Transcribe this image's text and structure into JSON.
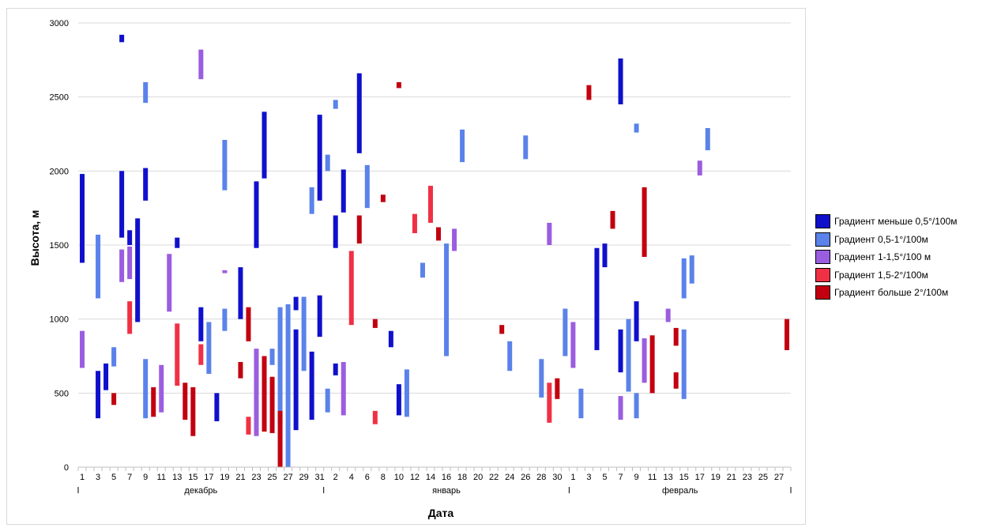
{
  "chart_data": {
    "type": "bar",
    "subtype": "floating-range-bars",
    "title": "",
    "xlabel": "Дата",
    "ylabel": "Высота, м",
    "ylim": [
      0,
      3000
    ],
    "yticks": [
      0,
      500,
      1000,
      1500,
      2000,
      2500,
      3000
    ],
    "grid": true,
    "legend_position": "right",
    "months": [
      {
        "label": "декабрь",
        "start": 0,
        "end": 30
      },
      {
        "label": "январь",
        "start": 31,
        "end": 61
      },
      {
        "label": "февраль",
        "start": 62,
        "end": 89
      }
    ],
    "x_tick_labels": [
      "1",
      "",
      "3",
      "",
      "5",
      "",
      "7",
      "",
      "9",
      "",
      "11",
      "",
      "13",
      "",
      "15",
      "",
      "17",
      "",
      "19",
      "",
      "21",
      "",
      "23",
      "",
      "25",
      "",
      "27",
      "",
      "29",
      "",
      "31",
      "",
      "2",
      "",
      "4",
      "",
      "6",
      "",
      "8",
      "",
      "10",
      "",
      "12",
      "",
      "14",
      "",
      "16",
      "",
      "18",
      "",
      "20",
      "",
      "22",
      "",
      "24",
      "",
      "26",
      "",
      "28",
      "",
      "30",
      "",
      "1",
      "",
      "3",
      "",
      "5",
      "",
      "7",
      "",
      "9",
      "",
      "11",
      "",
      "13",
      "",
      "15",
      "",
      "17",
      "",
      "19",
      "",
      "21",
      "",
      "23",
      "",
      "25",
      "",
      "27",
      ""
    ],
    "series": [
      {
        "name": "Градиент меньше 0,5°/100м",
        "color": "#1010cc",
        "bars": [
          [
            0,
            1380,
            1980
          ],
          [
            2,
            330,
            650
          ],
          [
            3,
            520,
            700
          ],
          [
            5,
            2870,
            2920
          ],
          [
            5,
            1550,
            2000
          ],
          [
            6,
            1500,
            1600
          ],
          [
            7,
            980,
            1680
          ],
          [
            8,
            1800,
            2020
          ],
          [
            12,
            1480,
            1550
          ],
          [
            15,
            850,
            1080
          ],
          [
            17,
            310,
            500
          ],
          [
            20,
            1000,
            1350
          ],
          [
            23,
            1950,
            2400
          ],
          [
            22,
            1480,
            1930
          ],
          [
            27,
            250,
            930
          ],
          [
            27,
            1060,
            1150
          ],
          [
            29,
            320,
            780
          ],
          [
            30,
            880,
            1160
          ],
          [
            30,
            1800,
            2380
          ],
          [
            32,
            620,
            700
          ],
          [
            32,
            1480,
            1700
          ],
          [
            33,
            1720,
            2010
          ],
          [
            35,
            2120,
            2660
          ],
          [
            39,
            810,
            920
          ],
          [
            40,
            350,
            560
          ],
          [
            65,
            790,
            1480
          ],
          [
            66,
            1350,
            1510
          ],
          [
            68,
            2450,
            2760
          ],
          [
            68,
            640,
            930
          ],
          [
            70,
            850,
            1120
          ]
        ]
      },
      {
        "name": "Градиент 0,5-1°/100м",
        "color": "#5a82ea",
        "bars": [
          [
            2,
            1140,
            1570
          ],
          [
            4,
            680,
            810
          ],
          [
            8,
            2460,
            2600
          ],
          [
            8,
            330,
            730
          ],
          [
            16,
            630,
            980
          ],
          [
            18,
            1870,
            2210
          ],
          [
            18,
            920,
            1070
          ],
          [
            24,
            690,
            800
          ],
          [
            25,
            300,
            1080
          ],
          [
            26,
            0,
            1100
          ],
          [
            28,
            650,
            1150
          ],
          [
            29,
            1710,
            1890
          ],
          [
            31,
            370,
            530
          ],
          [
            31,
            2000,
            2110
          ],
          [
            32,
            2420,
            2480
          ],
          [
            36,
            1750,
            2040
          ],
          [
            41,
            340,
            660
          ],
          [
            43,
            1280,
            1380
          ],
          [
            46,
            750,
            1510
          ],
          [
            48,
            2060,
            2280
          ],
          [
            54,
            650,
            850
          ],
          [
            56,
            2080,
            2240
          ],
          [
            58,
            470,
            730
          ],
          [
            61,
            750,
            1070
          ],
          [
            63,
            330,
            530
          ],
          [
            69,
            510,
            1000
          ],
          [
            70,
            330,
            500
          ],
          [
            70,
            2260,
            2320
          ],
          [
            76,
            460,
            930
          ],
          [
            76,
            1140,
            1410
          ],
          [
            77,
            1240,
            1430
          ],
          [
            79,
            2140,
            2290
          ]
        ]
      },
      {
        "name": "Градиент 1-1,5°/100 м",
        "color": "#9b5de0",
        "bars": [
          [
            0,
            670,
            920
          ],
          [
            5,
            1250,
            1470
          ],
          [
            6,
            1270,
            1490
          ],
          [
            10,
            370,
            690
          ],
          [
            11,
            1050,
            1440
          ],
          [
            15,
            2620,
            2820
          ],
          [
            18,
            1310,
            1330
          ],
          [
            22,
            210,
            800
          ],
          [
            33,
            350,
            710
          ],
          [
            47,
            1460,
            1610
          ],
          [
            59,
            1500,
            1650
          ],
          [
            62,
            670,
            980
          ],
          [
            68,
            320,
            480
          ],
          [
            71,
            570,
            870
          ],
          [
            74,
            980,
            1070
          ],
          [
            78,
            1970,
            2070
          ]
        ]
      },
      {
        "name": "Градиент 1,5-2°/100м",
        "color": "#f03044",
        "bars": [
          [
            6,
            900,
            1120
          ],
          [
            12,
            550,
            970
          ],
          [
            15,
            690,
            830
          ],
          [
            21,
            220,
            340
          ],
          [
            34,
            960,
            1460
          ],
          [
            37,
            290,
            380
          ],
          [
            42,
            1580,
            1710
          ],
          [
            44,
            1650,
            1900
          ],
          [
            59,
            300,
            570
          ]
        ]
      },
      {
        "name": "Градиент больше 2°/100м",
        "color": "#c20010",
        "bars": [
          [
            4,
            420,
            500
          ],
          [
            9,
            340,
            540
          ],
          [
            13,
            320,
            570
          ],
          [
            14,
            210,
            540
          ],
          [
            20,
            600,
            710
          ],
          [
            21,
            850,
            1080
          ],
          [
            23,
            240,
            750
          ],
          [
            24,
            230,
            610
          ],
          [
            25,
            0,
            380
          ],
          [
            35,
            1510,
            1700
          ],
          [
            37,
            940,
            1000
          ],
          [
            38,
            1790,
            1840
          ],
          [
            40,
            2560,
            2600
          ],
          [
            45,
            1530,
            1620
          ],
          [
            53,
            900,
            960
          ],
          [
            60,
            460,
            600
          ],
          [
            64,
            2480,
            2580
          ],
          [
            67,
            1610,
            1730
          ],
          [
            71,
            1420,
            1890
          ],
          [
            72,
            500,
            890
          ],
          [
            75,
            530,
            640
          ],
          [
            75,
            820,
            940
          ],
          [
            89,
            790,
            1000
          ]
        ]
      }
    ]
  }
}
